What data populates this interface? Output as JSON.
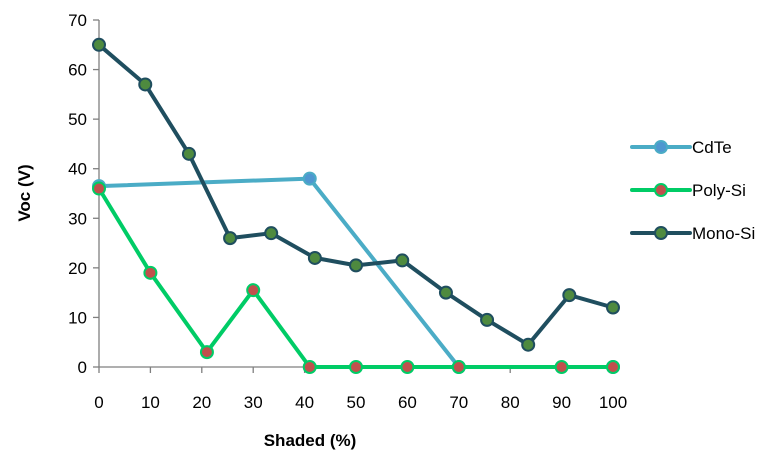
{
  "chart_data": {
    "type": "line",
    "title": "",
    "xlabel": "Shaded (%)",
    "ylabel": "Voc (V)",
    "xlim": [
      0,
      100
    ],
    "ylim": [
      0,
      70
    ],
    "xticks": [
      0,
      10,
      20,
      30,
      40,
      50,
      60,
      70,
      80,
      90,
      100
    ],
    "yticks": [
      0,
      10,
      20,
      30,
      40,
      50,
      60,
      70
    ],
    "grid": false,
    "legend_position": "right",
    "series": [
      {
        "name": "CdTe",
        "color": "#4bacc6",
        "marker_fill": "#4f97d0",
        "x": [
          0,
          41,
          70,
          100
        ],
        "y": [
          36.5,
          38,
          0,
          0
        ]
      },
      {
        "name": "Poly-Si",
        "color": "#00cc66",
        "marker_fill": "#c0504d",
        "x": [
          0,
          10,
          21,
          30,
          41,
          50,
          60,
          70,
          90,
          100
        ],
        "y": [
          36,
          19,
          3,
          15.5,
          0,
          0,
          0,
          0,
          0,
          0
        ]
      },
      {
        "name": "Mono-Si",
        "color": "#1f4e5f",
        "marker_fill": "#4e8a3f",
        "x": [
          0,
          9,
          17.5,
          25.5,
          33.5,
          42,
          50,
          59,
          67.5,
          75.5,
          83.5,
          91.5,
          100
        ],
        "y": [
          65,
          57,
          43,
          26,
          27,
          22,
          20.5,
          21.5,
          15,
          9.5,
          4.5,
          14.5,
          12
        ]
      }
    ]
  }
}
